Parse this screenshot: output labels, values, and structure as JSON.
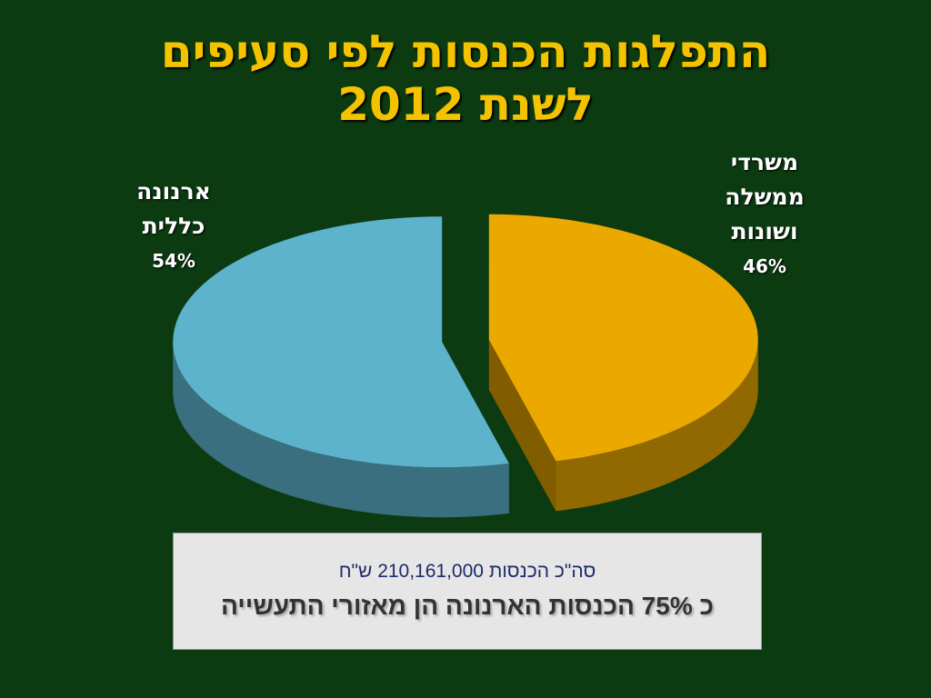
{
  "chart_data": {
    "type": "pie",
    "title": [
      "התפלגות הכנסות לפי סעיפים",
      "לשנת 2012"
    ],
    "categories": [
      "ארנונה כללית",
      "משרדי ממשלה ושונות"
    ],
    "values": [
      54,
      46
    ],
    "value_labels": [
      "54%",
      "46%"
    ],
    "colors": [
      "#5cb3cb",
      "#eba900"
    ],
    "annotations": [
      "סה\"כ הכנסות 210,161,000 ש\"ח",
      "כ 75% הכנסות הארנונה הן מאזורי התעשייה"
    ]
  }
}
